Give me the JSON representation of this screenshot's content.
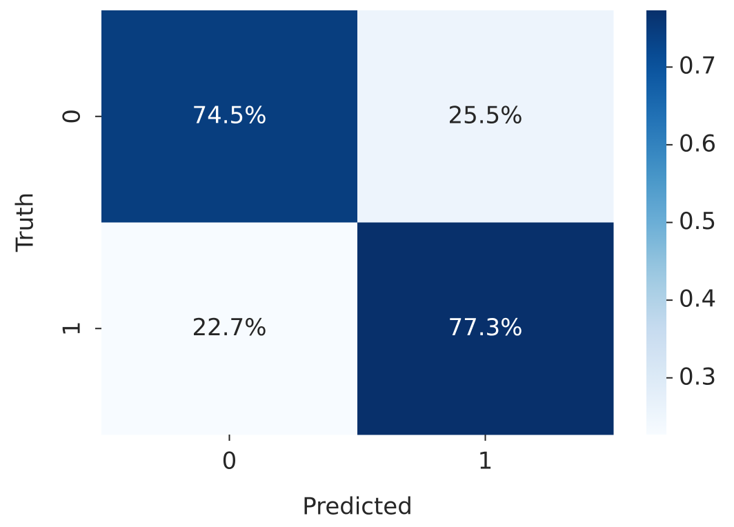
{
  "chart_data": {
    "type": "heatmap",
    "x_label": "Predicted",
    "y_label": "Truth",
    "x_categories": [
      "0",
      "1"
    ],
    "y_categories": [
      "0",
      "1"
    ],
    "values": [
      [
        0.745,
        0.255
      ],
      [
        0.227,
        0.773
      ]
    ],
    "value_labels": [
      [
        "74.5%",
        "25.5%"
      ],
      [
        "22.7%",
        "77.3%"
      ]
    ],
    "colormap": [
      "#f7fbff",
      "#deebf7",
      "#c6dbef",
      "#9ecae1",
      "#6baed6",
      "#4292c6",
      "#2171b5",
      "#08519c",
      "#08306b"
    ],
    "ylim": [
      0.227,
      0.773
    ],
    "yticks": [
      0.3,
      0.4,
      0.5,
      0.6,
      0.7
    ]
  }
}
